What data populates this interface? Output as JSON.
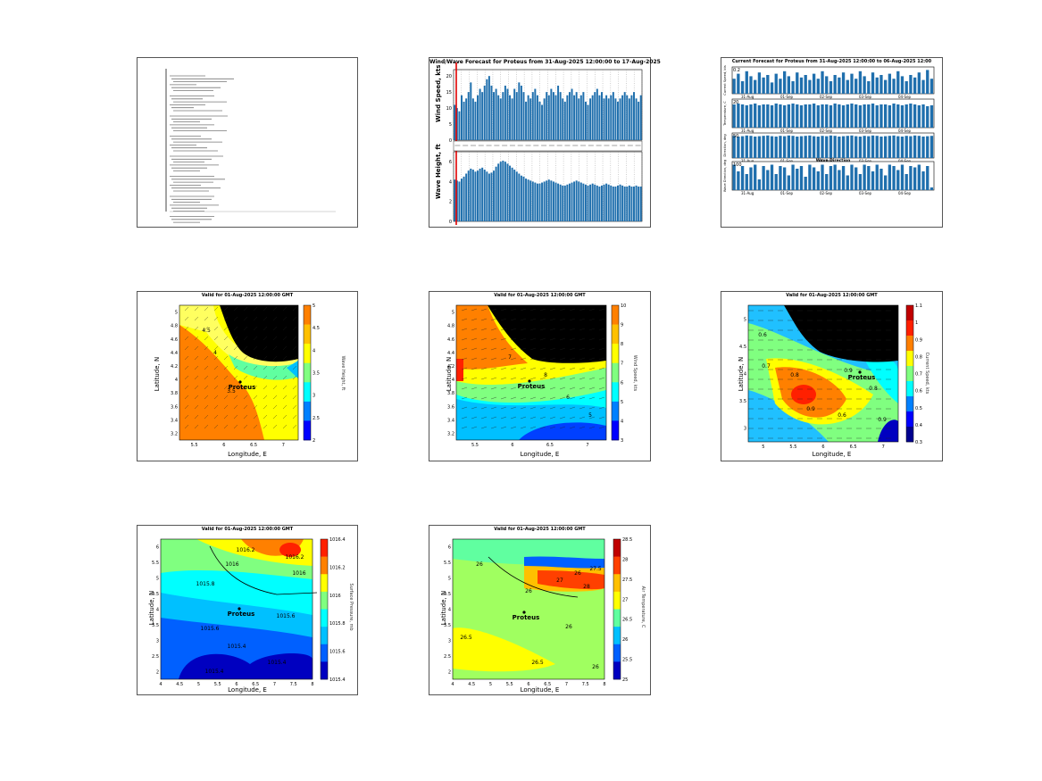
{
  "colors": {
    "bar": "#1f6fad",
    "marker": "#e00000",
    "land": "#000000",
    "jet": [
      "#00008f",
      "#0000ff",
      "#0080ff",
      "#00ffff",
      "#80ff80",
      "#ffff00",
      "#ff8000",
      "#ff0000",
      "#800000"
    ]
  },
  "panels": {
    "report": {
      "title": ""
    },
    "wind_wave": {
      "title": "Wind/Wave Forecast for Proteus from 31-Aug-2025 12:00:00 to 17-Aug-2025",
      "top_ylabel": "Wind Speed, kts",
      "bottom_ylabel": "Wave Height, ft",
      "top_yticks": [
        "0",
        "5",
        "10",
        "15",
        "20"
      ],
      "bottom_yticks": [
        "0",
        "2",
        "4",
        "6"
      ]
    },
    "current": {
      "title": "Current Forecast for Proteus from 31-Aug-2025 12:00:00 to 06-Aug-2025 12:00",
      "row_ylabels": [
        "Current Speed, kts",
        "Temperature, C",
        "Direction, deg",
        "Wave Direction, deg"
      ],
      "row_yticks": [
        "0.2",
        "20",
        "50",
        "100"
      ],
      "inner_title": "Wave Direction",
      "date_labels": [
        "31-Aug",
        "01-Sep",
        "02-Sep",
        "03-Sep",
        "04-Sep"
      ]
    },
    "wave_map": {
      "title": "Valid for 01-Aug-2025 12:00:00 GMT",
      "xlabel": "Longitude, E",
      "ylabel": "Latitude, N",
      "cblabel": "Wave Height, ft",
      "xticks": [
        "5.5",
        "6",
        "6.5",
        "7"
      ],
      "yticks": [
        "5",
        "4.8",
        "4.6",
        "4.4",
        "4.2",
        "4",
        "3.8",
        "3.6",
        "3.4",
        "3.2"
      ],
      "cbticks": [
        "5",
        "4.5",
        "4",
        "3.5",
        "3",
        "2.5",
        "2"
      ],
      "contours": [
        "4.5",
        "4",
        "3.5"
      ],
      "vessel": "Proteus"
    },
    "wind_map": {
      "title": "Valid for 01-Aug-2025 12:00:00 GMT",
      "xlabel": "Longitude, E",
      "ylabel": "Latitude, N",
      "cblabel": "Wind Speed, kts",
      "xticks": [
        "5.5",
        "6",
        "6.5",
        "7"
      ],
      "yticks": [
        "5",
        "4.8",
        "4.6",
        "4.4",
        "4.2",
        "4",
        "3.8",
        "3.6",
        "3.4",
        "3.2"
      ],
      "cbticks": [
        "10",
        "9",
        "8",
        "7",
        "6",
        "5",
        "4",
        "3"
      ],
      "contours": [
        "8",
        "7",
        "6",
        "5"
      ],
      "vessel": "Proteus"
    },
    "current_map": {
      "title": "Valid for 01-Aug-2025 12:00:00 GMT",
      "xlabel": "Longitude, E",
      "ylabel": "Latitude, N",
      "cblabel": "Current Speed, kts",
      "xticks": [
        "5",
        "5.5",
        "6",
        "6.5",
        "7"
      ],
      "yticks": [
        "5",
        "4.5",
        "4",
        "3.5",
        "3"
      ],
      "cbticks": [
        "1.1",
        "1",
        "0.9",
        "0.8",
        "0.7",
        "0.6",
        "0.5",
        "0.4",
        "0.3"
      ],
      "contours": [
        "0.6",
        "0.7",
        "0.8",
        "0.9",
        "0.6",
        "0.8",
        "0.9",
        "0.9"
      ],
      "vessel": "Proteus"
    },
    "pressure_map": {
      "title": "Valid for 01-Aug-2025 12:00:00 GMT",
      "xlabel": "Longitude, E",
      "ylabel": "Latitude, N",
      "cblabel": "Surface Pressure, mb",
      "xticks": [
        "4",
        "4.5",
        "5",
        "5.5",
        "6",
        "6.5",
        "7",
        "7.5",
        "8"
      ],
      "yticks": [
        "6",
        "5.5",
        "5",
        "4.5",
        "4",
        "3.5",
        "3",
        "2.5",
        "2"
      ],
      "cbticks": [
        "1016.4",
        "1016.2",
        "1016",
        "1015.8",
        "1015.6",
        "1015.4"
      ],
      "contours": [
        "1016.2",
        "1016.2",
        "1016",
        "1016",
        "1015.8",
        "1015.6",
        "1015.6",
        "1015.4",
        "1015.4",
        "1015.4"
      ],
      "vessel": "Proteus"
    },
    "temp_map": {
      "title": "Valid for 01-Aug-2025 12:00:00 GMT",
      "xlabel": "Longitude, E",
      "ylabel": "Latitude, N",
      "cblabel": "Air Temperature, C",
      "xticks": [
        "4",
        "4.5",
        "5",
        "5.5",
        "6",
        "6.5",
        "7",
        "7.5",
        "8"
      ],
      "yticks": [
        "6",
        "5.5",
        "5",
        "4.5",
        "4",
        "3.5",
        "3",
        "2.5",
        "2"
      ],
      "cbticks": [
        "28.5",
        "28",
        "27.5",
        "27",
        "26.5",
        "26",
        "25.5",
        "25"
      ],
      "contours": [
        "26",
        "26",
        "26",
        "26.5",
        "26.5",
        "26",
        "26",
        "27",
        "27.5",
        "28"
      ],
      "vessel": "Proteus"
    }
  },
  "chart_data": [
    {
      "type": "bar",
      "title": "Wind/Wave Forecast for Proteus from 31-Aug-2025 12:00:00 to 17-Aug-2025",
      "ylabel": "Wind Speed, kts",
      "ylim": [
        0,
        22
      ],
      "values": [
        11,
        10,
        9,
        14,
        12,
        13,
        15,
        18,
        13,
        12,
        14,
        16,
        15,
        17,
        19,
        20,
        17,
        15,
        16,
        14,
        13,
        15,
        17,
        16,
        14,
        13,
        16,
        15,
        18,
        17,
        15,
        12,
        14,
        13,
        15,
        16,
        14,
        12,
        11,
        13,
        15,
        14,
        16,
        15,
        14,
        17,
        15,
        13,
        12,
        14,
        15,
        16,
        14,
        15,
        13,
        14,
        15,
        12,
        11,
        13,
        14,
        15,
        16,
        14,
        15,
        13,
        14,
        13,
        14,
        15,
        13,
        12,
        13,
        14,
        15,
        14,
        13,
        14,
        15,
        13,
        12,
        14
      ]
    },
    {
      "type": "bar",
      "ylabel": "Wave Height, ft",
      "ylim": [
        0,
        7
      ],
      "values": [
        4.2,
        4.1,
        4.0,
        4.3,
        4.5,
        4.8,
        5.1,
        5.3,
        5.2,
        5.0,
        5.1,
        5.3,
        5.4,
        5.2,
        5.0,
        4.8,
        4.9,
        5.1,
        5.5,
        5.8,
        6.0,
        6.1,
        6.0,
        5.8,
        5.6,
        5.4,
        5.2,
        5.0,
        4.8,
        4.6,
        4.5,
        4.3,
        4.2,
        4.1,
        4.0,
        3.9,
        3.8,
        3.8,
        3.9,
        4.0,
        4.1,
        4.2,
        4.1,
        4.0,
        3.9,
        3.8,
        3.7,
        3.6,
        3.6,
        3.7,
        3.8,
        3.9,
        4.0,
        4.1,
        4.0,
        3.9,
        3.8,
        3.7,
        3.6,
        3.7,
        3.8,
        3.7,
        3.6,
        3.5,
        3.6,
        3.7,
        3.8,
        3.7,
        3.6,
        3.5,
        3.5,
        3.6,
        3.7,
        3.6,
        3.5,
        3.5,
        3.6,
        3.5,
        3.5,
        3.6,
        3.5,
        3.5
      ]
    },
    {
      "type": "bar",
      "title": "Current Forecast for Proteus from 31-Aug-2025 12:00:00 to 06-Aug-2025 12:00",
      "ylabel": "Current Speed, kts",
      "values": [
        0.12,
        0.16,
        0.1,
        0.18,
        0.14,
        0.11,
        0.17,
        0.13,
        0.15,
        0.09,
        0.16,
        0.12,
        0.18,
        0.14,
        0.1,
        0.17,
        0.13,
        0.15,
        0.11,
        0.16,
        0.12,
        0.18,
        0.14,
        0.1,
        0.15,
        0.13,
        0.17,
        0.11,
        0.16,
        0.12,
        0.18,
        0.14,
        0.1,
        0.17,
        0.13,
        0.15,
        0.11,
        0.16,
        0.12,
        0.18,
        0.14,
        0.1,
        0.15,
        0.13,
        0.17,
        0.11,
        0.19,
        0.12
      ]
    },
    {
      "type": "bar",
      "ylabel": "Temperature, C",
      "values": [
        26,
        27,
        26,
        25,
        26,
        27,
        25,
        26,
        26,
        25,
        27,
        26,
        25,
        26,
        27,
        26,
        25,
        26,
        26,
        27,
        25,
        26,
        26,
        25,
        27,
        26,
        25,
        26,
        27,
        26,
        25,
        26,
        26,
        27,
        25,
        26,
        26,
        25,
        27,
        26,
        25,
        26,
        27,
        26,
        25,
        26,
        24,
        25
      ]
    },
    {
      "type": "bar",
      "ylabel": "Direction, deg",
      "values": [
        62,
        60,
        61,
        63,
        62,
        60,
        61,
        62,
        63,
        61,
        60,
        62,
        61,
        63,
        62,
        60,
        61,
        62,
        63,
        61,
        60,
        62,
        61,
        63,
        62,
        60,
        61,
        62,
        63,
        61,
        60,
        62,
        61,
        63,
        62,
        60,
        61,
        62,
        63,
        61,
        60,
        62,
        61,
        63,
        62,
        60,
        61,
        62
      ]
    },
    {
      "type": "bar",
      "title": "Wave Direction",
      "ylabel": "Wave Direction, deg",
      "values": [
        95,
        70,
        90,
        60,
        85,
        95,
        40,
        90,
        75,
        95,
        60,
        90,
        85,
        55,
        95,
        80,
        90,
        50,
        95,
        85,
        70,
        95,
        60,
        90,
        95,
        75,
        90,
        55,
        95,
        85,
        60,
        95,
        90,
        70,
        95,
        80,
        55,
        95,
        90,
        75,
        95,
        60,
        90,
        85,
        95,
        70,
        90,
        10
      ]
    }
  ]
}
